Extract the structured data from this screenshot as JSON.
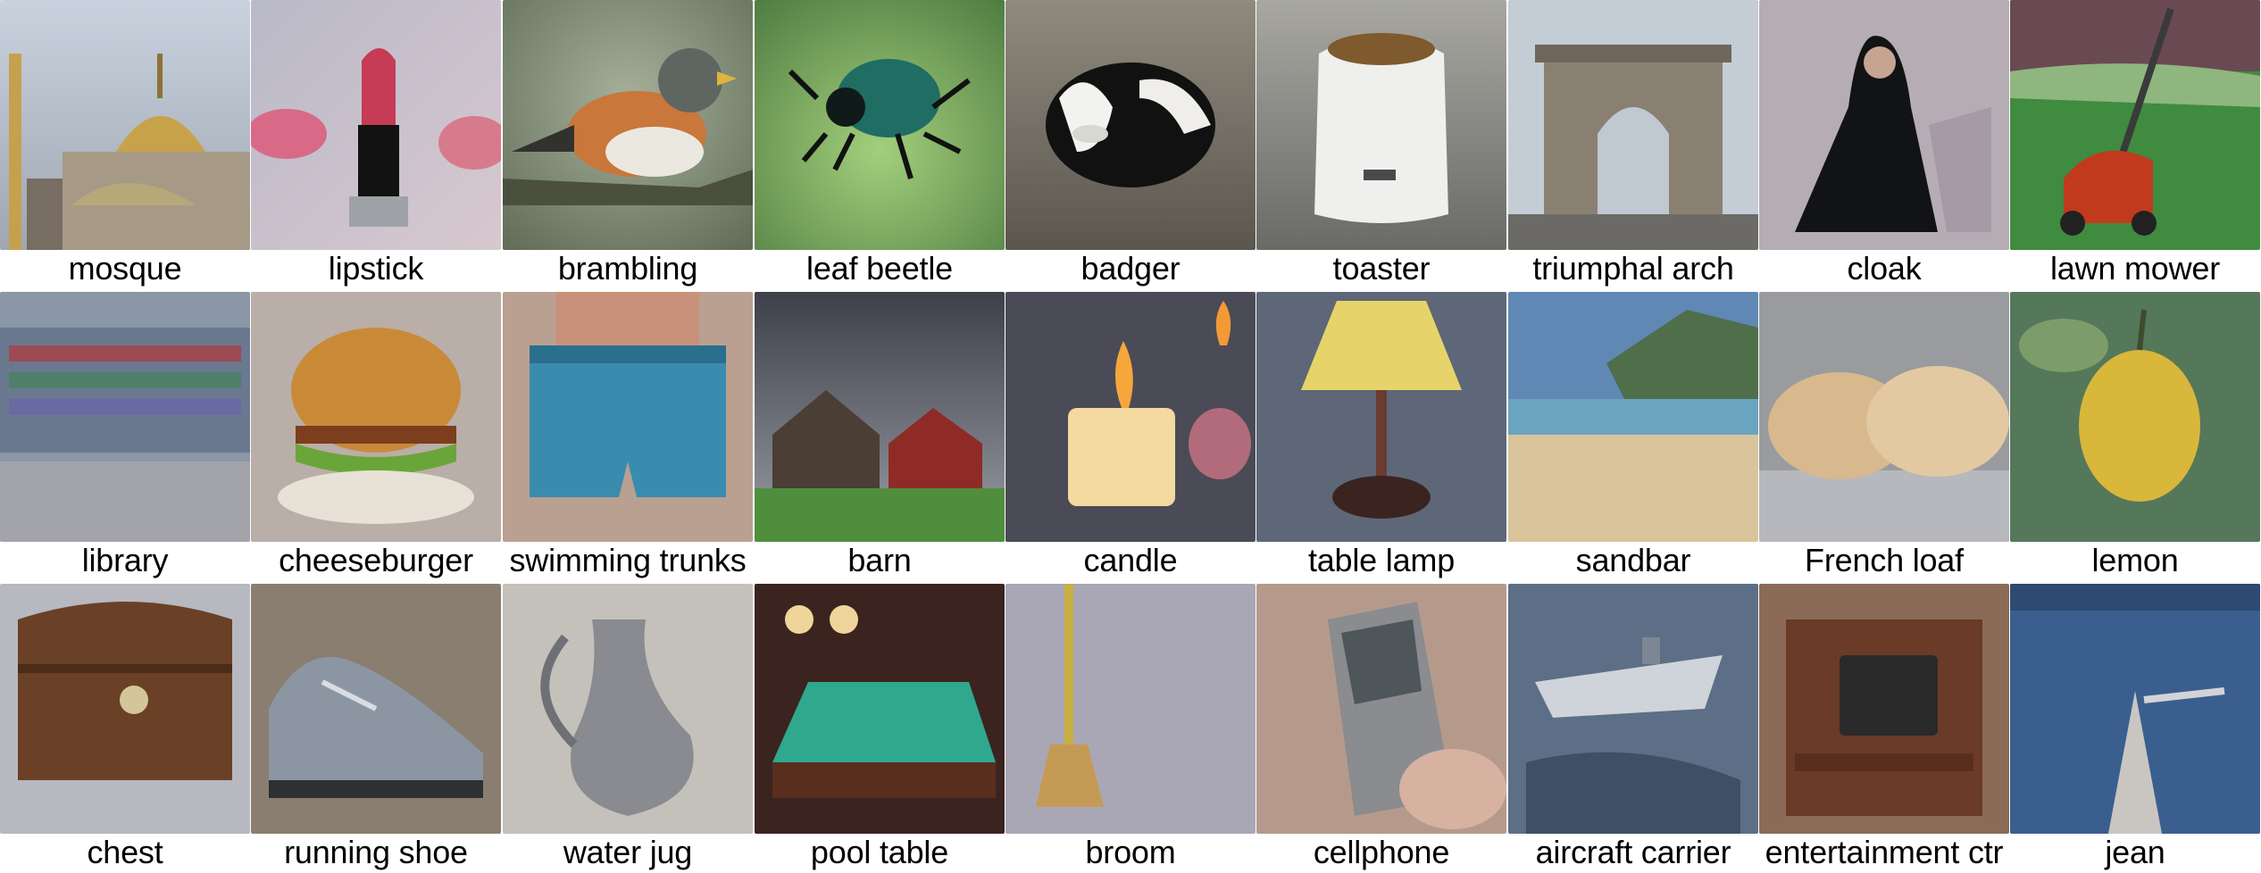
{
  "grid": {
    "rows": [
      {
        "cells": [
          {
            "label": "mosque",
            "icon": "mosque-dome-icon",
            "bg": "#b9c3d2",
            "accent": "#c8a24a"
          },
          {
            "label": "lipstick",
            "icon": "lipstick-tube-icon",
            "bg": "#c7b7c6",
            "accent": "#d24a63"
          },
          {
            "label": "brambling",
            "icon": "finch-bird-icon",
            "bg": "#8c9b7c",
            "accent": "#c9773a"
          },
          {
            "label": "leaf beetle",
            "icon": "beetle-icon",
            "bg": "#7aa35f",
            "accent": "#1f6d63"
          },
          {
            "label": "badger",
            "icon": "badger-face-icon",
            "bg": "#75736a",
            "accent": "#111111"
          },
          {
            "label": "toaster",
            "icon": "toaster-icon",
            "bg": "#8f8e89",
            "accent": "#eeeeee"
          },
          {
            "label": "triumphal arch",
            "icon": "arch-monument-icon",
            "bg": "#b8c2cc",
            "accent": "#8a8072"
          },
          {
            "label": "cloak",
            "icon": "cloak-figure-icon",
            "bg": "#b5adb3",
            "accent": "#121315"
          },
          {
            "label": "lawn mower",
            "icon": "lawn-mower-icon",
            "bg": "#3f8b3f",
            "accent": "#c23a1d"
          }
        ]
      },
      {
        "cells": [
          {
            "label": "library",
            "icon": "bookshelf-icon",
            "bg": "#8b96a6",
            "accent": "#5a6f8c"
          },
          {
            "label": "cheeseburger",
            "icon": "burger-icon",
            "bg": "#b9aea8",
            "accent": "#c98a38"
          },
          {
            "label": "swimming trunks",
            "icon": "swim-trunks-icon",
            "bg": "#b9a091",
            "accent": "#3a8cae"
          },
          {
            "label": "barn",
            "icon": "barn-icon",
            "bg": "#5f646e",
            "accent": "#8f2b26"
          },
          {
            "label": "candle",
            "icon": "candle-flame-icon",
            "bg": "#4a4b56",
            "accent": "#f4d9a0"
          },
          {
            "label": "table lamp",
            "icon": "table-lamp-icon",
            "bg": "#5d6778",
            "accent": "#e6d46a"
          },
          {
            "label": "sandbar",
            "icon": "beach-coast-icon",
            "bg": "#5f89b4",
            "accent": "#d9c49c"
          },
          {
            "label": "French loaf",
            "icon": "bread-loaf-icon",
            "bg": "#9a9b9f",
            "accent": "#d7b98d"
          },
          {
            "label": "lemon",
            "icon": "lemon-fruit-icon",
            "bg": "#55785a",
            "accent": "#d8b73a"
          }
        ]
      },
      {
        "cells": [
          {
            "label": "chest",
            "icon": "treasure-chest-icon",
            "bg": "#b7b8c0",
            "accent": "#6a4126"
          },
          {
            "label": "running shoe",
            "icon": "sneaker-icon",
            "bg": "#8a7e70",
            "accent": "#8c96a3"
          },
          {
            "label": "water jug",
            "icon": "pitcher-icon",
            "bg": "#c4c1bb",
            "accent": "#8a8b91"
          },
          {
            "label": "pool table",
            "icon": "billiard-table-icon",
            "bg": "#3b2420",
            "accent": "#2fa88e"
          },
          {
            "label": "broom",
            "icon": "broom-icon",
            "bg": "#a9a7b5",
            "accent": "#c59a54"
          },
          {
            "label": "cellphone",
            "icon": "mobile-phone-icon",
            "bg": "#b59a8c",
            "accent": "#8a8c8f"
          },
          {
            "label": "aircraft carrier",
            "icon": "aircraft-carrier-icon",
            "bg": "#5d6f86",
            "accent": "#cfd4da"
          },
          {
            "label": "entertainment ctr",
            "icon": "tv-cabinet-icon",
            "bg": "#8b6b57",
            "accent": "#2a2a2a"
          },
          {
            "label": "jean",
            "icon": "denim-jeans-icon",
            "bg": "#c9c6c2",
            "accent": "#3a5f8f"
          }
        ]
      }
    ]
  }
}
